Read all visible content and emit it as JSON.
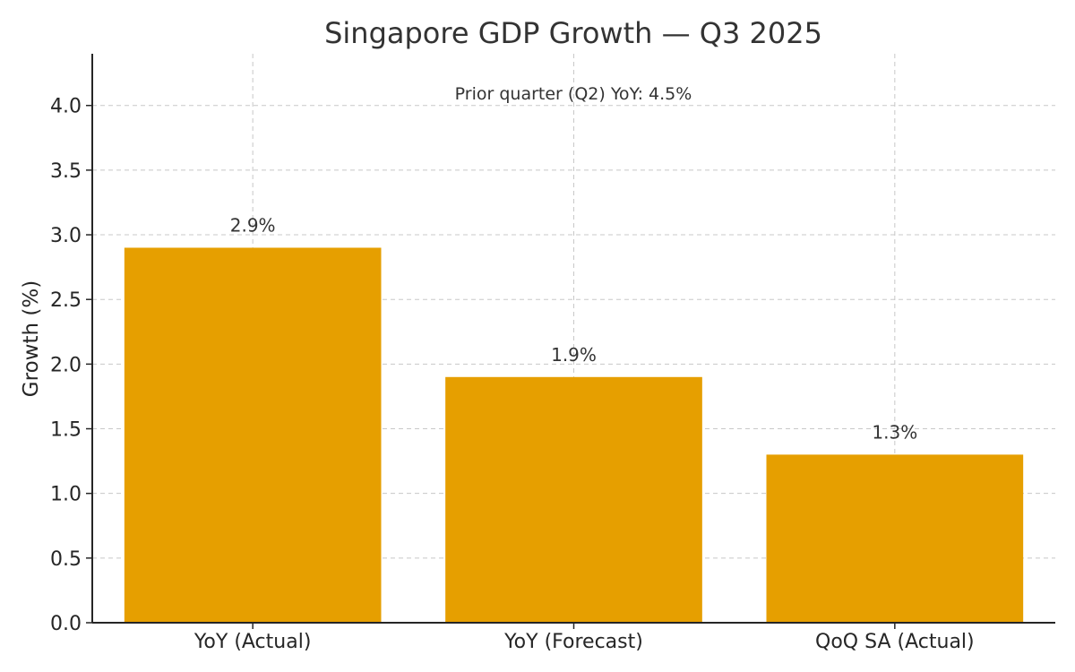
{
  "chart_data": {
    "type": "bar",
    "title": "Singapore GDP Growth — Q3 2025",
    "xlabel": "",
    "ylabel": "Growth (%)",
    "categories": [
      "YoY (Actual)",
      "YoY (Forecast)",
      "QoQ SA (Actual)"
    ],
    "values": [
      2.9,
      1.9,
      1.3
    ],
    "data_labels": [
      "2.9%",
      "1.9%",
      "1.3%"
    ],
    "ylim": [
      0,
      4.4
    ],
    "yticks": [
      0.0,
      0.5,
      1.0,
      1.5,
      2.0,
      2.5,
      3.0,
      3.5,
      4.0
    ],
    "ytick_labels": [
      "0.0",
      "0.5",
      "1.0",
      "1.5",
      "2.0",
      "2.5",
      "3.0",
      "3.5",
      "4.0"
    ],
    "annotation": "Prior quarter (Q2) YoY: 4.5%",
    "grid": true,
    "bar_color": "#E69F00",
    "legend": false
  }
}
